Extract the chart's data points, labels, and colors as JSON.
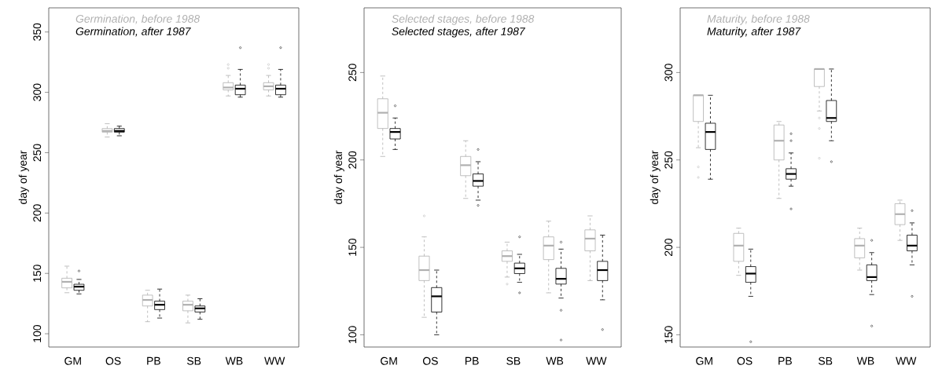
{
  "chart_data": [
    {
      "type": "box",
      "categories": [
        "GM",
        "OS",
        "PB",
        "SB",
        "WB",
        "WW"
      ],
      "ylabel": "day of year",
      "ylim": [
        89,
        370
      ],
      "yticks": [
        100,
        150,
        200,
        250,
        300,
        350
      ],
      "legend": "top left",
      "series": [
        {
          "name": "Germination, before 1988",
          "color": "#b0b0b0",
          "boxes": [
            {
              "low": 134,
              "q1": 138,
              "median": 143,
              "q3": 146,
              "high": 156
            },
            {
              "low": 263,
              "q1": 267,
              "median": 268,
              "q3": 270,
              "high": 274
            },
            {
              "low": 110,
              "q1": 123,
              "median": 128,
              "q3": 132,
              "high": 136
            },
            {
              "low": 109,
              "q1": 119,
              "median": 124,
              "q3": 127,
              "high": 132
            },
            {
              "low": 297,
              "q1": 302,
              "median": 304,
              "q3": 308,
              "high": 314,
              "outliers": [
                320,
                323
              ]
            },
            {
              "low": 297,
              "q1": 302,
              "median": 305,
              "q3": 308,
              "high": 314,
              "outliers": [
                320,
                323
              ]
            }
          ]
        },
        {
          "name": "Germination, after 1987",
          "color": "#000000",
          "boxes": [
            {
              "low": 133,
              "q1": 136,
              "median": 139,
              "q3": 141,
              "high": 145,
              "outliers": [
                152
              ]
            },
            {
              "low": 264,
              "q1": 267,
              "median": 268,
              "q3": 270,
              "high": 272
            },
            {
              "low": 113,
              "q1": 120,
              "median": 124,
              "q3": 127,
              "high": 137
            },
            {
              "low": 112,
              "q1": 118,
              "median": 121,
              "q3": 123,
              "high": 129
            },
            {
              "low": 296,
              "q1": 298,
              "median": 303,
              "q3": 306,
              "high": 319,
              "outliers": [
                337
              ]
            },
            {
              "low": 296,
              "q1": 298,
              "median": 303,
              "q3": 306,
              "high": 319,
              "outliers": [
                337
              ]
            }
          ]
        }
      ]
    },
    {
      "type": "box",
      "categories": [
        "GM",
        "OS",
        "PB",
        "SB",
        "WB",
        "WW"
      ],
      "ylabel": "day of year",
      "ylim": [
        93,
        287
      ],
      "yticks": [
        100,
        150,
        200,
        250
      ],
      "legend": "top left",
      "series": [
        {
          "name": "Selected stages, before 1988",
          "color": "#b0b0b0",
          "boxes": [
            {
              "low": 202,
              "q1": 218,
              "median": 227,
              "q3": 235,
              "high": 248
            },
            {
              "low": 110,
              "q1": 131,
              "median": 137,
              "q3": 145,
              "high": 156,
              "outliers": [
                168
              ]
            },
            {
              "low": 178,
              "q1": 191,
              "median": 197,
              "q3": 202,
              "high": 211
            },
            {
              "low": 133,
              "q1": 142,
              "median": 145,
              "q3": 148,
              "high": 153,
              "outliers": [
                129
              ]
            },
            {
              "low": 124,
              "q1": 143,
              "median": 151,
              "q3": 156,
              "high": 165
            },
            {
              "low": 131,
              "q1": 148,
              "median": 155,
              "q3": 160,
              "high": 168
            }
          ]
        },
        {
          "name": "Selected stages, after 1987",
          "color": "#000000",
          "boxes": [
            {
              "low": 206,
              "q1": 212,
              "median": 216,
              "q3": 218,
              "high": 224,
              "outliers": [
                231
              ]
            },
            {
              "low": 100,
              "q1": 113,
              "median": 122,
              "q3": 127,
              "high": 137
            },
            {
              "low": 177,
              "q1": 185,
              "median": 188,
              "q3": 192,
              "high": 199,
              "outliers": [
                206,
                174
              ]
            },
            {
              "low": 130,
              "q1": 135,
              "median": 138,
              "q3": 141,
              "high": 146,
              "outliers": [
                156,
                124
              ]
            },
            {
              "low": 121,
              "q1": 129,
              "median": 132,
              "q3": 138,
              "high": 149,
              "outliers": [
                153,
                114,
                97
              ]
            },
            {
              "low": 120,
              "q1": 131,
              "median": 137,
              "q3": 142,
              "high": 157,
              "outliers": [
                103
              ]
            }
          ]
        }
      ]
    },
    {
      "type": "box",
      "categories": [
        "GM",
        "OS",
        "PB",
        "SB",
        "WB",
        "WW"
      ],
      "ylabel": "day of year",
      "ylim": [
        143,
        337
      ],
      "yticks": [
        150,
        200,
        250,
        300
      ],
      "legend": "top left",
      "series": [
        {
          "name": "Maturity, before 1988",
          "color": "#b0b0b0",
          "boxes": [
            {
              "low": 257,
              "q1": 272,
              "median": 287,
              "q3": 287,
              "high": 287,
              "outliers": [
                246,
                240
              ]
            },
            {
              "low": 184,
              "q1": 192,
              "median": 201,
              "q3": 208,
              "high": 211
            },
            {
              "low": 228,
              "q1": 250,
              "median": 261,
              "q3": 270,
              "high": 272
            },
            {
              "low": 278,
              "q1": 292,
              "median": 302,
              "q3": 302,
              "high": 302,
              "outliers": [
                274,
                268,
                251
              ]
            },
            {
              "low": 187,
              "q1": 194,
              "median": 201,
              "q3": 205,
              "high": 211
            },
            {
              "low": 204,
              "q1": 213,
              "median": 219,
              "q3": 225,
              "high": 227
            }
          ]
        },
        {
          "name": "Maturity, after 1987",
          "color": "#000000",
          "boxes": [
            {
              "low": 239,
              "q1": 256,
              "median": 266,
              "q3": 271,
              "high": 287
            },
            {
              "low": 172,
              "q1": 180,
              "median": 185,
              "q3": 189,
              "high": 199,
              "outliers": [
                146
              ]
            },
            {
              "low": 235,
              "q1": 239,
              "median": 242,
              "q3": 245,
              "high": 254,
              "outliers": [
                265,
                261,
                222
              ]
            },
            {
              "low": 261,
              "q1": 272,
              "median": 274,
              "q3": 284,
              "high": 302,
              "outliers": [
                249
              ]
            },
            {
              "low": 173,
              "q1": 181,
              "median": 183,
              "q3": 190,
              "high": 197,
              "outliers": [
                204,
                155
              ]
            },
            {
              "low": 190,
              "q1": 198,
              "median": 201,
              "q3": 207,
              "high": 214,
              "outliers": [
                221,
                172
              ]
            }
          ]
        }
      ]
    }
  ]
}
